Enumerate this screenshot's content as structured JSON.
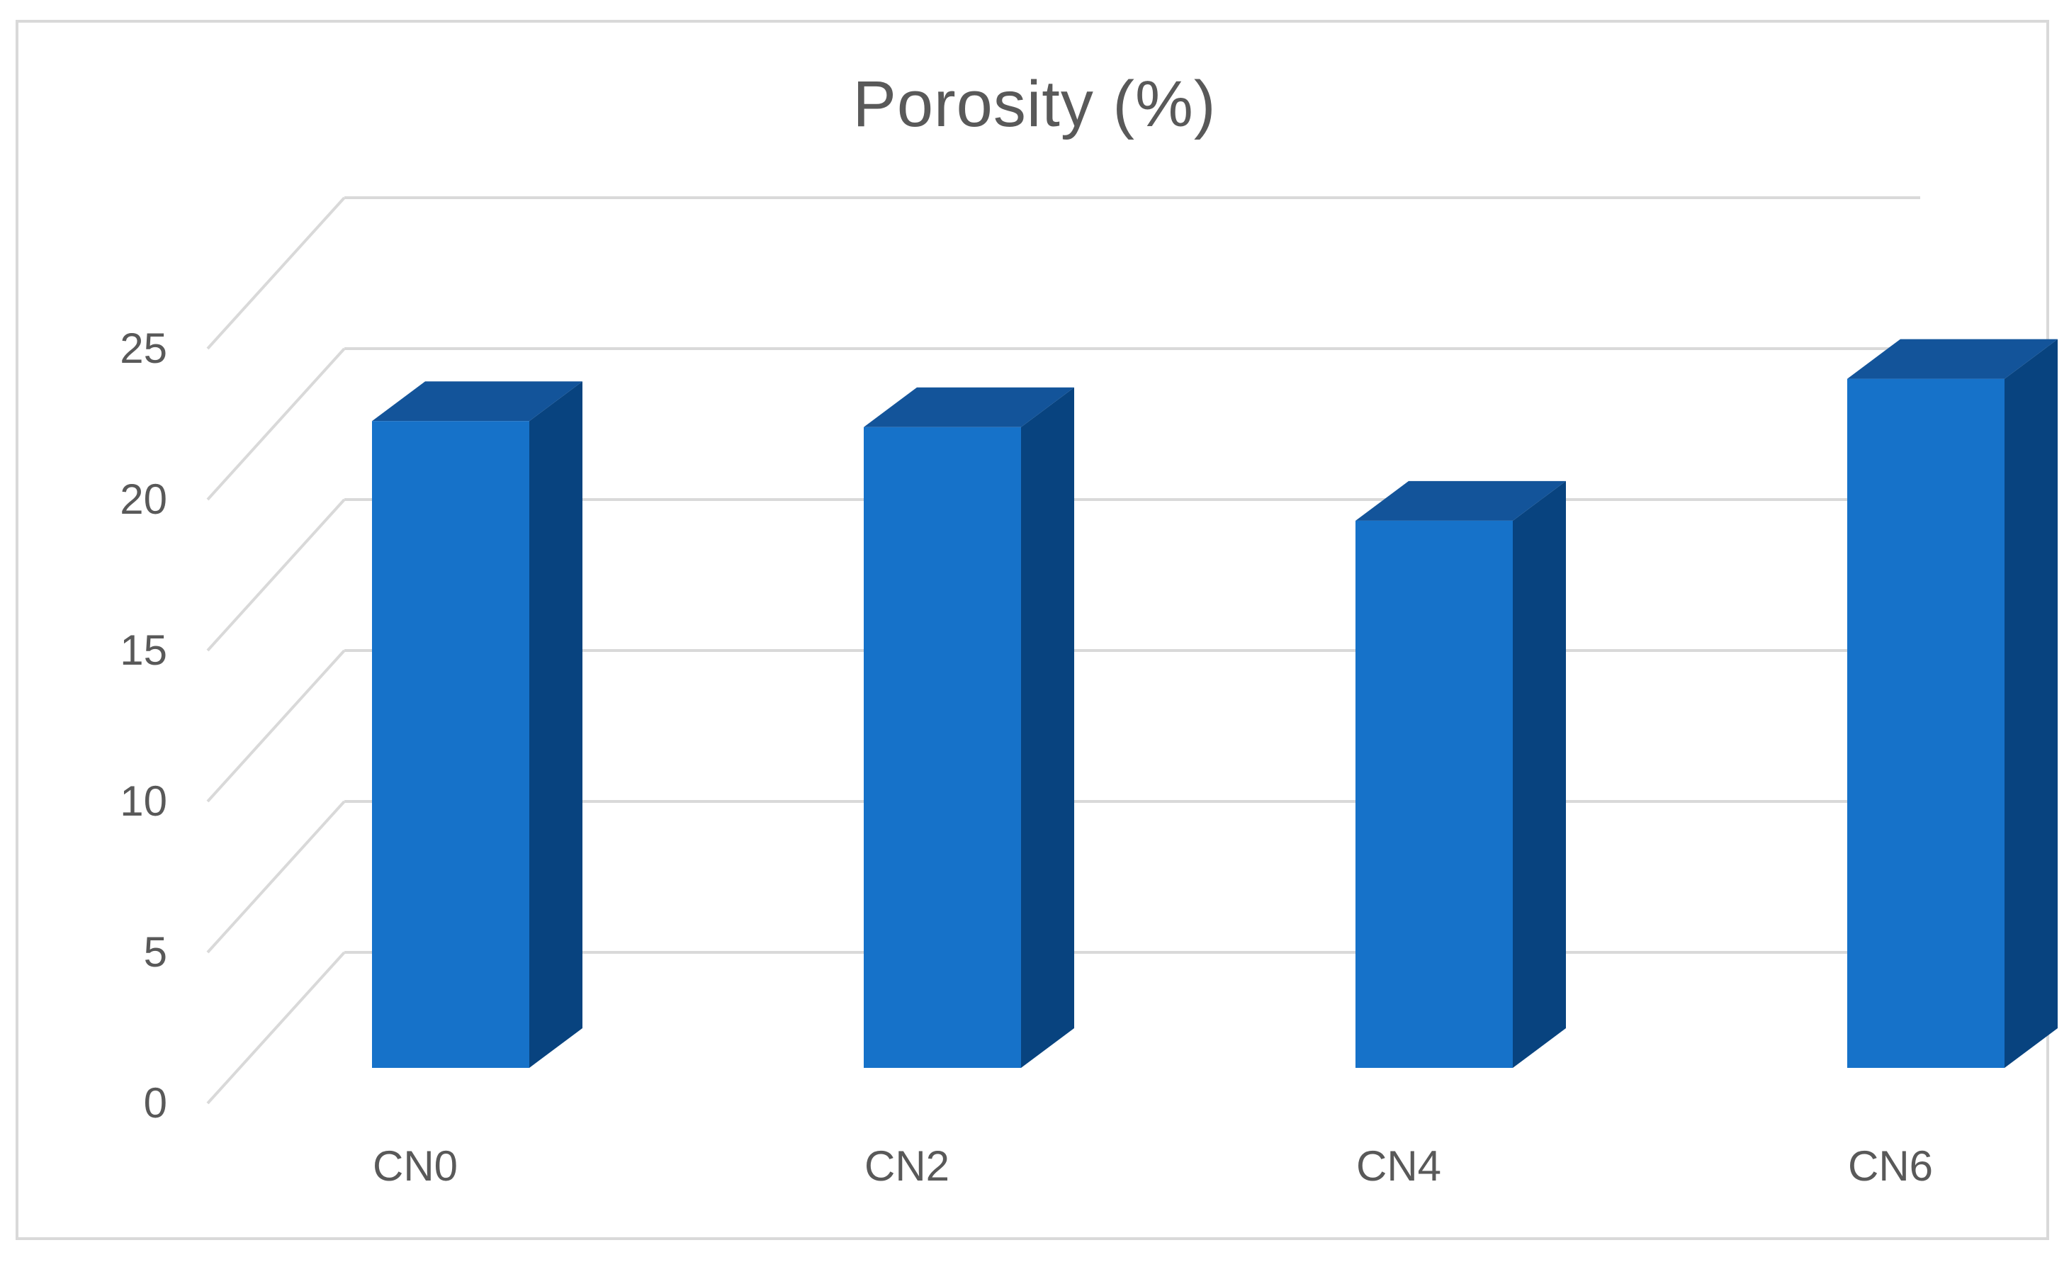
{
  "chart_data": {
    "type": "bar",
    "title": "Porosity (%)",
    "categories": [
      "CN0",
      "CN2",
      "CN4",
      "CN6"
    ],
    "values": [
      22.6,
      22.4,
      19.3,
      24.0
    ],
    "xlabel": "",
    "ylabel": "",
    "ylim": [
      0,
      25
    ],
    "y_ticks": [
      "0",
      "5",
      "10",
      "15",
      "20",
      "25"
    ],
    "grid": true,
    "legend": "none",
    "style": "3d-column"
  },
  "colors": {
    "bar_front": "#1672c9",
    "bar_top": "#13549a",
    "bar_side": "#08437f",
    "gridline": "#d9d9d9",
    "text": "#595959",
    "frame": "#d9d9d9"
  }
}
